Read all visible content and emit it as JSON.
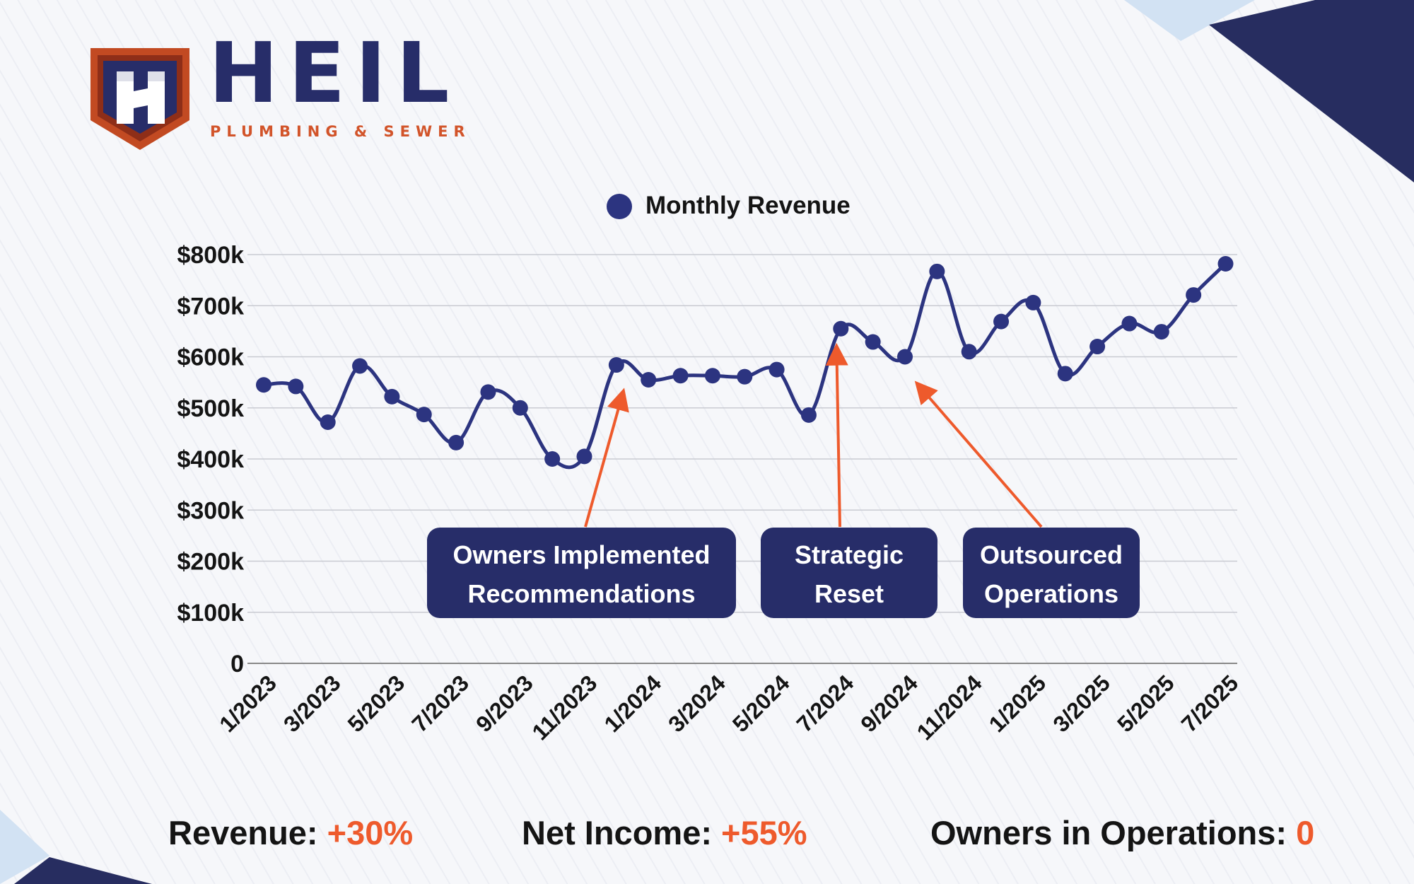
{
  "brand": {
    "name": "HEIL",
    "tagline": "PLUMBING & SEWER",
    "colors": {
      "navy": "#272d69",
      "orange": "#d2542a"
    }
  },
  "colors": {
    "line": "#2c3480",
    "annotation_box": "#272d69",
    "arrow": "#ee5a2c",
    "stat_value": "#ee5a2c",
    "corner_dark": "#272d60",
    "corner_light": "#d2e2f3"
  },
  "chart_data": {
    "type": "line",
    "legend": {
      "label": "Monthly Revenue",
      "position": "top"
    },
    "ylim": [
      0,
      800000
    ],
    "y_ticks": [
      {
        "value": 0,
        "label": "0"
      },
      {
        "value": 100000,
        "label": "$100k"
      },
      {
        "value": 200000,
        "label": "$200k"
      },
      {
        "value": 300000,
        "label": "$300k"
      },
      {
        "value": 400000,
        "label": "$400k"
      },
      {
        "value": 500000,
        "label": "$500k"
      },
      {
        "value": 600000,
        "label": "$600k"
      },
      {
        "value": 700000,
        "label": "$700k"
      },
      {
        "value": 800000,
        "label": "$800k"
      }
    ],
    "x_tick_labels": [
      "1/2023",
      "3/2023",
      "5/2023",
      "7/2023",
      "9/2023",
      "11/2023",
      "1/2024",
      "3/2024",
      "5/2024",
      "7/2024",
      "9/2024",
      "11/2024",
      "1/2025",
      "3/2025",
      "5/2025",
      "7/2025"
    ],
    "grid": true,
    "series": [
      {
        "name": "Monthly Revenue",
        "x": [
          "1/2023",
          "2/2023",
          "3/2023",
          "4/2023",
          "5/2023",
          "6/2023",
          "7/2023",
          "8/2023",
          "9/2023",
          "10/2023",
          "11/2023",
          "12/2023",
          "1/2024",
          "2/2024",
          "3/2024",
          "4/2024",
          "5/2024",
          "6/2024",
          "7/2024",
          "8/2024",
          "9/2024",
          "10/2024",
          "11/2024",
          "12/2024",
          "1/2025",
          "2/2025",
          "3/2025",
          "4/2025",
          "5/2025",
          "6/2025",
          "7/2025"
        ],
        "values": [
          545000,
          542000,
          472000,
          582000,
          522000,
          487000,
          432000,
          531000,
          500000,
          400000,
          405000,
          584000,
          555000,
          563000,
          563000,
          561000,
          575000,
          486000,
          655000,
          629000,
          600000,
          767000,
          610000,
          669000,
          706000,
          567000,
          620000,
          665000,
          649000,
          721000,
          782000
        ]
      }
    ],
    "annotations": [
      {
        "text": [
          "Owners Implemented",
          "Recommendations"
        ],
        "x": "12/2023"
      },
      {
        "text": [
          "Strategic",
          "Reset"
        ],
        "x": "7/2024"
      },
      {
        "text": [
          "Outsourced",
          "Operations"
        ],
        "x": "9/2024"
      }
    ]
  },
  "stats": [
    {
      "label": "Revenue: ",
      "value": "+30%"
    },
    {
      "label": "Net Income: ",
      "value": "+55%"
    },
    {
      "label": "Owners in Operations: ",
      "value": "0"
    }
  ]
}
